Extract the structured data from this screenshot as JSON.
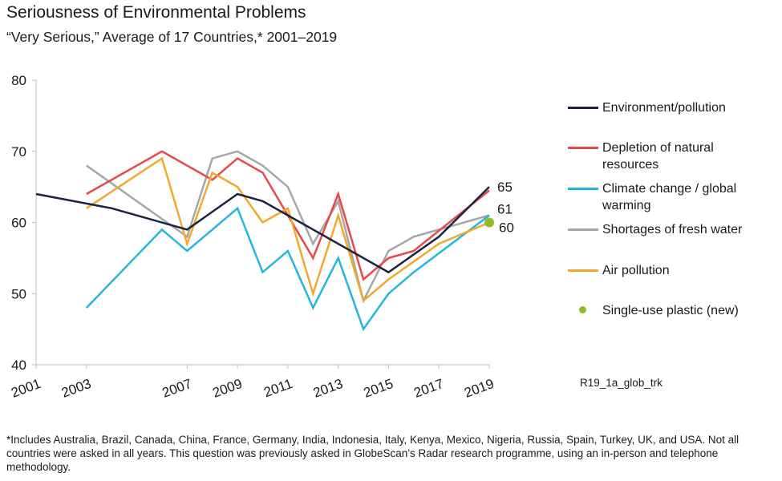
{
  "title": "Seriousness of Environmental Problems",
  "subtitle": "“Very Serious,” Average of 17 Countries,* 2001–2019",
  "source_code": "R19_1a_glob_trk",
  "footnote": "*Includes Australia, Brazil, Canada, China, France, Germany, India, Indonesia, Italy, Kenya, Mexico, Nigeria, Russia, Spain, Turkey, UK, and USA. Not all countries were asked in all years. This question was previously asked in GlobeScan’s Radar research programme, using an in-person and telephone methodology.",
  "chart_data": {
    "type": "line",
    "xlim": [
      2001,
      2019
    ],
    "ylim": [
      40,
      80
    ],
    "x_ticks": [
      "2001",
      "2003",
      "2007",
      "2009",
      "2011",
      "2013",
      "2015",
      "2017",
      "2019"
    ],
    "y_ticks": [
      "40",
      "50",
      "60",
      "70",
      "80"
    ],
    "grid": false,
    "legend_position": "right",
    "series": [
      {
        "name": "Environment/pollution",
        "color": "#1b2340",
        "points": [
          [
            2001,
            64
          ],
          [
            2004,
            62
          ],
          [
            2007,
            59
          ],
          [
            2009,
            64
          ],
          [
            2010,
            63
          ],
          [
            2011,
            61
          ],
          [
            2015,
            53
          ],
          [
            2017,
            58
          ],
          [
            2019,
            65
          ]
        ],
        "end_label": "65"
      },
      {
        "name": "Depletion of natural resources",
        "color": "#e8474b",
        "points": [
          [
            2003,
            64
          ],
          [
            2006,
            70
          ],
          [
            2008,
            66
          ],
          [
            2009,
            69
          ],
          [
            2010,
            67
          ],
          [
            2012,
            55
          ],
          [
            2013,
            64
          ],
          [
            2014,
            52
          ],
          [
            2015,
            55
          ],
          [
            2016,
            56
          ],
          [
            2019,
            64.5
          ]
        ]
      },
      {
        "name": "Climate change / global warming",
        "color": "#25b6dc",
        "points": [
          [
            2003,
            48
          ],
          [
            2006,
            59
          ],
          [
            2007,
            56
          ],
          [
            2009,
            62
          ],
          [
            2010,
            53
          ],
          [
            2011,
            56
          ],
          [
            2012,
            48
          ],
          [
            2013,
            55
          ],
          [
            2014,
            45
          ],
          [
            2015,
            50
          ],
          [
            2016,
            53
          ],
          [
            2019,
            61
          ]
        ]
      },
      {
        "name": "Shortages of fresh water",
        "color": "#a6a6a6",
        "points": [
          [
            2003,
            68
          ],
          [
            2007,
            58
          ],
          [
            2008,
            69
          ],
          [
            2009,
            70
          ],
          [
            2010,
            68
          ],
          [
            2011,
            65
          ],
          [
            2012,
            57
          ],
          [
            2013,
            63
          ],
          [
            2014,
            49
          ],
          [
            2015,
            56
          ],
          [
            2016,
            58
          ],
          [
            2019,
            61
          ]
        ],
        "end_label": "61"
      },
      {
        "name": "Air pollution",
        "color": "#f2a82b",
        "points": [
          [
            2003,
            62
          ],
          [
            2006,
            69
          ],
          [
            2007,
            57
          ],
          [
            2008,
            67
          ],
          [
            2009,
            65
          ],
          [
            2010,
            60
          ],
          [
            2011,
            62
          ],
          [
            2012,
            50
          ],
          [
            2013,
            61
          ],
          [
            2014,
            49
          ],
          [
            2015,
            52
          ],
          [
            2017,
            57
          ],
          [
            2019,
            60
          ]
        ]
      },
      {
        "name": "Single-use plastic (new)",
        "color": "#8dbd2a",
        "marker": "dot",
        "points": [
          [
            2019,
            60
          ]
        ],
        "end_label": "60"
      }
    ]
  }
}
